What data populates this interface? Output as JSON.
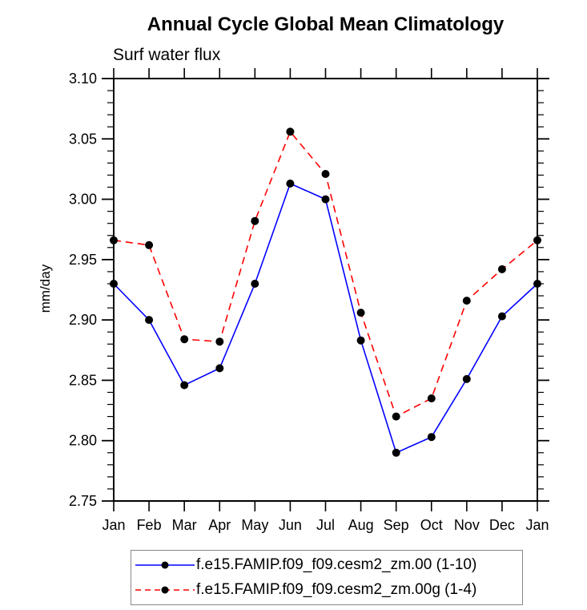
{
  "chart": {
    "title": "Annual Cycle Global Mean Climatology",
    "subtitle": "Surf water flux",
    "ylabel": "mm/day"
  },
  "chart_data": {
    "type": "line",
    "title": "Annual Cycle Global Mean Climatology",
    "subtitle": "Surf water flux",
    "xlabel": "",
    "ylabel": "mm/day",
    "categories": [
      "Jan",
      "Feb",
      "Mar",
      "Apr",
      "May",
      "Jun",
      "Jul",
      "Aug",
      "Sep",
      "Oct",
      "Nov",
      "Dec",
      "Jan"
    ],
    "ylim": [
      2.75,
      3.1
    ],
    "ytick_major_step": 0.05,
    "ytick_minor_step": 0.01,
    "ytick_label_format": "2-decimals",
    "grid": false,
    "legend_position": "bottom",
    "axis_color": "#000000",
    "marker_color": "#000000",
    "series": [
      {
        "name": "f.e15.FAMIP.f09_f09.cesm2_zm.00 (1-10)",
        "color": "#0000ff",
        "line_style": "solid",
        "marker": "filled-circle",
        "values": [
          2.93,
          2.9,
          2.846,
          2.86,
          2.93,
          3.013,
          3.0,
          2.883,
          2.79,
          2.803,
          2.851,
          2.903,
          2.93
        ]
      },
      {
        "name": "f.e15.FAMIP.f09_f09.cesm2_zm.00g (1-4)",
        "color": "#ff0000",
        "line_style": "dashed",
        "marker": "filled-circle",
        "values": [
          2.966,
          2.962,
          2.884,
          2.882,
          2.982,
          3.056,
          3.021,
          2.906,
          2.82,
          2.835,
          2.916,
          2.942,
          2.966
        ]
      }
    ]
  }
}
